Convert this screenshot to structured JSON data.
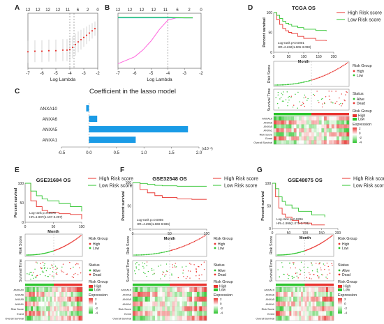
{
  "colors": {
    "high": "#e8332e",
    "low": "#2cc42c",
    "bar": "#1a9be6",
    "lasso": "#e8332e",
    "dead": "#e8332e",
    "alive": "#2cc42c",
    "heat_hi": "#e8332e",
    "heat_lo": "#2cc42c"
  },
  "panel_letters": {
    "A": "A",
    "B": "B",
    "C": "C",
    "D": "D",
    "E": "E",
    "F": "F",
    "G": "G"
  },
  "chart_data": [
    {
      "id": "A",
      "type": "line",
      "xlabel": "Log Lambda",
      "xlim": [
        -7,
        -2
      ],
      "xticks": [
        "-7",
        "-6",
        "-5",
        "-4",
        "-3",
        "-2"
      ],
      "top_ticks": [
        "12",
        "12",
        "12",
        "12",
        "11",
        "6",
        "2",
        "0"
      ],
      "x": [
        -7,
        -6.5,
        -6,
        -5.5,
        -5,
        -4.5,
        -4.2,
        -4,
        -3.8,
        -3.6,
        -3.4,
        -3.2,
        -3,
        -2.8,
        -2.6,
        -2.4,
        -2.2
      ],
      "y": [
        0.3,
        0.31,
        0.31,
        0.32,
        0.32,
        0.33,
        0.33,
        0.34,
        0.38,
        0.43,
        0.48,
        0.52,
        0.56,
        0.6,
        0.64,
        0.68,
        0.72
      ],
      "err": [
        0.2,
        0.2,
        0.2,
        0.2,
        0.2,
        0.2,
        0.2,
        0.2,
        0.2,
        0.2,
        0.19,
        0.18,
        0.17,
        0.16,
        0.15,
        0.14,
        0.13
      ],
      "vlines": [
        -4.0,
        -3.7
      ]
    },
    {
      "id": "B",
      "type": "line",
      "xlabel": "Log Lambda",
      "xlim": [
        -7,
        -2
      ],
      "xticks": [
        "-7",
        "-6",
        "-5",
        "-4",
        "-3",
        "-2"
      ],
      "top_ticks": [
        "12",
        "12",
        "12",
        "12",
        "11",
        "6",
        "2",
        "0"
      ],
      "series": [
        {
          "color": "#ff66dd",
          "x": [
            -7,
            -6,
            -5.5,
            -5,
            -4.5,
            -4,
            -3.5,
            -3,
            -2.5
          ],
          "y": [
            -0.9,
            -0.75,
            -0.6,
            -0.4,
            -0.15,
            0.05,
            0.1,
            0.1,
            0.1
          ]
        },
        {
          "color": "#22aaff",
          "x": [
            -7,
            -5,
            -4,
            -3,
            -2.5
          ],
          "y": [
            0.1,
            0.1,
            0.1,
            0.1,
            0.1
          ]
        },
        {
          "color": "#22cc22",
          "x": [
            -7,
            -4,
            -3,
            -2.5
          ],
          "y": [
            0.11,
            0.11,
            0.1,
            0.1
          ]
        }
      ],
      "vline": -4.0
    },
    {
      "id": "C",
      "type": "bar",
      "orientation": "horizontal",
      "title": "Coefficient in the lasso model",
      "categories": [
        "ANXA10",
        "ANXA6",
        "ANXA5",
        "ANXA1"
      ],
      "values": [
        -0.05,
        0.15,
        1.8,
        0.85
      ],
      "xlim": [
        -0.5,
        2.0
      ],
      "xticks": [
        "-0.5",
        "0.0",
        "0.5",
        "1.0",
        "1.5",
        "2.0"
      ],
      "xunit": "(x10⁻²)"
    },
    {
      "id": "D",
      "type": "line",
      "title": "TCGA OS",
      "ylabel": "Percent survival",
      "xlabel": "Month",
      "xlim": [
        0,
        200
      ],
      "ylim": [
        0,
        100
      ],
      "xticks": [
        "0",
        "50",
        "100",
        "150",
        "200"
      ],
      "yticks": [
        "0",
        "50",
        "100"
      ],
      "legend": [
        "High Risk score",
        "Low Risk score"
      ],
      "stat": [
        "Log-rank p<0.0001",
        "HR=2.232(1.606-3.098)"
      ],
      "high": {
        "x": [
          0,
          10,
          20,
          30,
          40,
          50,
          60,
          80,
          100,
          140,
          175
        ],
        "y": [
          100,
          82,
          70,
          60,
          54,
          50,
          47,
          40,
          35,
          30,
          28
        ]
      },
      "low": {
        "x": [
          0,
          10,
          20,
          30,
          40,
          50,
          60,
          80,
          100,
          140,
          175
        ],
        "y": [
          100,
          93,
          85,
          78,
          73,
          70,
          66,
          62,
          58,
          55,
          53
        ]
      },
      "genes": [
        "ANXA10",
        "ANXA6",
        "ANXA5",
        "ANXA1",
        "Risk Score",
        "Event",
        "Overall Survival"
      ]
    },
    {
      "id": "E",
      "type": "line",
      "title": "GSE31684 OS",
      "ylabel": "Percent survival",
      "xlabel": "Month",
      "xlim": [
        0,
        100
      ],
      "ylim": [
        0,
        100
      ],
      "xticks": [
        "0",
        "50",
        "100"
      ],
      "yticks": [
        "0",
        "50",
        "100"
      ],
      "legend": [
        "High Risk score",
        "Low Risk score"
      ],
      "stat": [
        "Log-rank p=0.0079",
        "HR=1.907(1.197-3.297)"
      ],
      "high": {
        "x": [
          0,
          10,
          20,
          30,
          40,
          60,
          80,
          100
        ],
        "y": [
          100,
          55,
          40,
          30,
          25,
          22,
          20,
          8
        ]
      },
      "low": {
        "x": [
          0,
          10,
          20,
          30,
          40,
          60,
          80,
          100
        ],
        "y": [
          100,
          80,
          68,
          60,
          55,
          48,
          40,
          28
        ]
      },
      "genes": [
        "ANXA10",
        "ANXA6",
        "ANXA5",
        "ANXA1",
        "Risk Score",
        "Event",
        "Overall Survival"
      ]
    },
    {
      "id": "F",
      "type": "line",
      "title": "GSE32548 OS",
      "ylabel": "Percent survival",
      "xlabel": "Month",
      "xlim": [
        0,
        100
      ],
      "ylim": [
        0,
        100
      ],
      "xticks": [
        "0",
        "50",
        "100"
      ],
      "yticks": [
        "0",
        "50",
        "100"
      ],
      "legend": [
        "High Risk score",
        "Low Risk score"
      ],
      "stat": [
        "Log-rank p=0.0055",
        "HR=4.255(1.669-8.596)"
      ],
      "high": {
        "x": [
          0,
          10,
          20,
          30,
          40,
          60,
          80,
          100
        ],
        "y": [
          100,
          85,
          78,
          72,
          68,
          65,
          64,
          64
        ]
      },
      "low": {
        "x": [
          0,
          10,
          20,
          30,
          40,
          60,
          80,
          100
        ],
        "y": [
          100,
          98,
          96,
          94,
          93,
          92,
          92,
          92
        ]
      },
      "genes": [
        "ANXA10",
        "ANXA6",
        "ANXA5",
        "ANXA1",
        "Risk Score",
        "Event",
        "Overall Survival"
      ]
    },
    {
      "id": "G",
      "type": "line",
      "title": "GSE48075 OS",
      "ylabel": "Percent survival",
      "xlabel": "Month",
      "xlim": [
        0,
        200
      ],
      "ylim": [
        0,
        100
      ],
      "xticks": [
        "0",
        "50",
        "100",
        "150",
        "200"
      ],
      "yticks": [
        "0",
        "50",
        "100"
      ],
      "legend": [
        "High Risk score",
        "Low Risk score"
      ],
      "stat": [
        "Log-rank p=0.0296",
        "HR=1.999(1.071-3.731)"
      ],
      "high": {
        "x": [
          0,
          10,
          20,
          30,
          40,
          60,
          80,
          120,
          160
        ],
        "y": [
          100,
          70,
          45,
          32,
          25,
          18,
          12,
          8,
          8
        ]
      },
      "low": {
        "x": [
          0,
          10,
          20,
          30,
          40,
          60,
          80,
          120,
          160
        ],
        "y": [
          100,
          88,
          70,
          60,
          52,
          45,
          38,
          30,
          25
        ]
      },
      "genes": [
        "ANXA10",
        "ANXA6",
        "ANXA5",
        "ANXA1",
        "Risk Score",
        "Event",
        "Overall Survival"
      ]
    }
  ],
  "risk_panel": {
    "risk_label": "Risk Score",
    "survival_label": "Survival Time",
    "group_title": "Risk Group",
    "group_items": [
      "High",
      "Low"
    ],
    "status_title": "Status",
    "status_items": [
      "Alive",
      "Dead"
    ],
    "heat_group_title": "Risk Group",
    "heat_group_items": [
      "High",
      "Low"
    ],
    "expression_title": "Expression",
    "expression_ticks": [
      "2",
      "0",
      "-2",
      "-4"
    ]
  }
}
